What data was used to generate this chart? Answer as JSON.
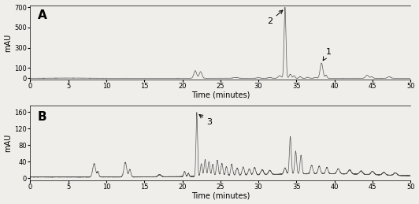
{
  "panel_A": {
    "label": "A",
    "ylabel": "mAU",
    "xlabel": "Time (minutes)",
    "xlim": [
      0,
      50
    ],
    "ylim": [
      -15,
      720
    ],
    "yticks": [
      0,
      100,
      300,
      500,
      700
    ],
    "xticks": [
      0,
      5,
      10,
      15,
      20,
      25,
      30,
      35,
      40,
      45,
      50
    ]
  },
  "panel_B": {
    "label": "B",
    "ylabel": "mAU",
    "xlabel": "Time (minutes)",
    "xlim": [
      0,
      50
    ],
    "ylim": [
      -5,
      175
    ],
    "yticks": [
      0,
      40,
      80,
      120,
      160
    ],
    "xticks": [
      0,
      5,
      10,
      15,
      20,
      25,
      30,
      35,
      40,
      45,
      50
    ]
  },
  "line_color": "#555555",
  "bg_color": "#f0eeeb",
  "font_size": 7,
  "label_fontsize": 11
}
